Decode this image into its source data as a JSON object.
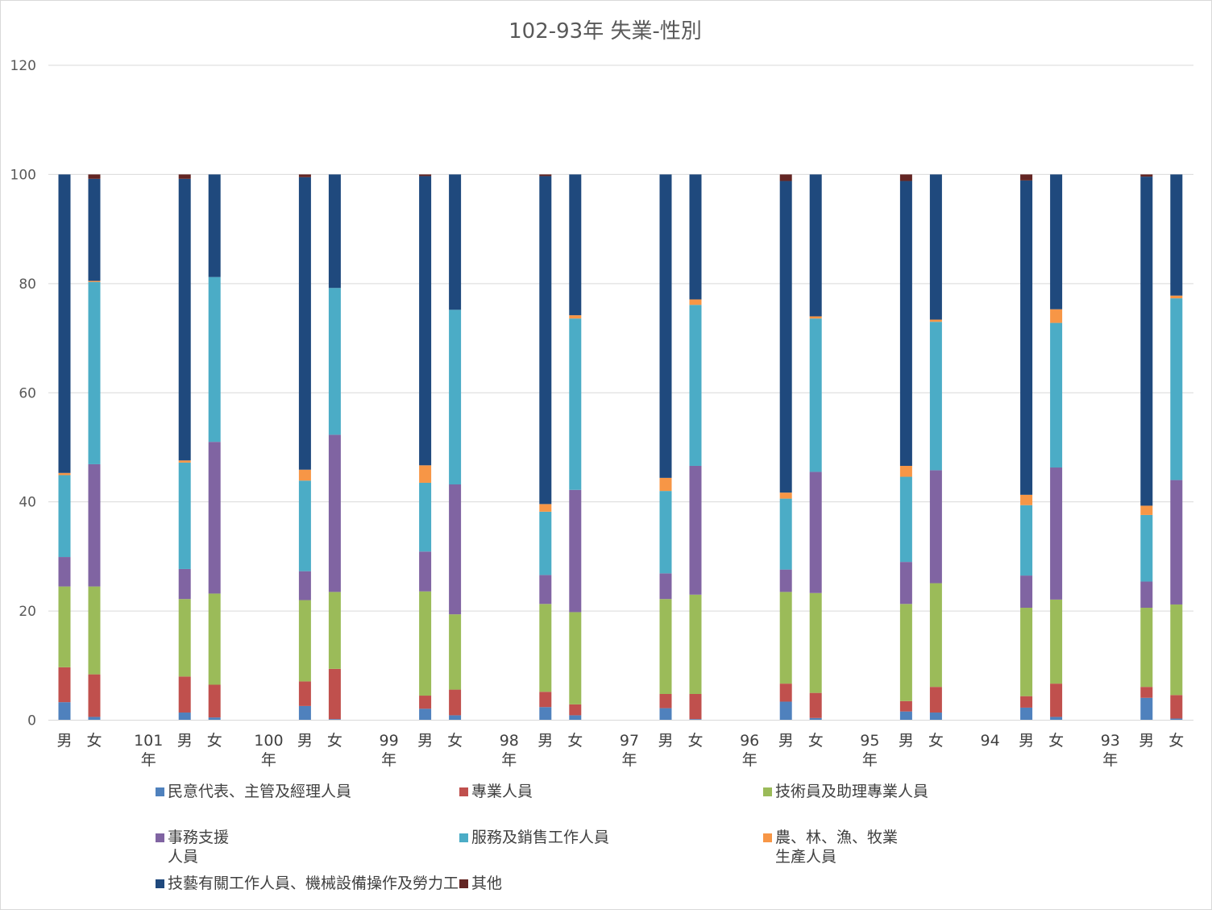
{
  "chart_data": {
    "type": "bar",
    "stacked": true,
    "title": "102-93年 失業-性別",
    "xlabel": "",
    "ylabel": "",
    "ylim": [
      0,
      120
    ],
    "yticks": [
      0,
      20,
      40,
      60,
      80,
      100,
      120
    ],
    "grid": true,
    "legend_position": "bottom",
    "groups": [
      "",
      "101\n年",
      "100\n年",
      "99\n年",
      "98\n年",
      "97\n年",
      "96\n年",
      "95\n年",
      "94",
      "93\n年"
    ],
    "categories": [
      "男",
      "女",
      "男",
      "女",
      "男",
      "女",
      "男",
      "女",
      "男",
      "女",
      "男",
      "女",
      "男",
      "女",
      "男",
      "女",
      "男",
      "女",
      "男",
      "女"
    ],
    "series": [
      {
        "name": "民意代表、主管及經理人員",
        "color": "#4f81bd",
        "values": [
          3.3,
          0.6,
          1.4,
          0.5,
          2.6,
          0.2,
          2.1,
          0.9,
          2.4,
          0.9,
          2.2,
          0.2,
          3.4,
          0.4,
          1.6,
          1.4,
          2.3,
          0.6,
          4.1,
          0.3
        ]
      },
      {
        "name": "專業人員",
        "color": "#c0504d",
        "values": [
          6.4,
          7.8,
          6.6,
          6.0,
          4.5,
          9.2,
          2.4,
          4.7,
          2.8,
          2.0,
          2.6,
          4.6,
          3.3,
          4.6,
          1.9,
          4.7,
          2.1,
          6.1,
          2.0,
          4.3
        ]
      },
      {
        "name": "技術員及助理專業人員",
        "color": "#9bbb59",
        "values": [
          14.8,
          16.1,
          14.2,
          16.7,
          14.9,
          14.1,
          19.1,
          13.8,
          16.1,
          16.9,
          17.4,
          18.2,
          16.8,
          18.3,
          17.8,
          19.0,
          16.2,
          15.4,
          14.5,
          16.6
        ]
      },
      {
        "name": "事務支援\n人員",
        "color": "#8064a2",
        "values": [
          5.4,
          22.4,
          5.5,
          27.8,
          5.3,
          28.8,
          7.3,
          23.8,
          5.3,
          22.4,
          4.7,
          23.6,
          4.1,
          22.2,
          7.7,
          20.7,
          5.9,
          24.2,
          4.8,
          22.8
        ]
      },
      {
        "name": "服務及銷售工作人員",
        "color": "#4bacc6",
        "values": [
          15.0,
          33.4,
          19.5,
          30.2,
          16.6,
          26.9,
          12.6,
          32.0,
          11.6,
          31.4,
          15.1,
          29.5,
          13.0,
          28.1,
          15.6,
          27.2,
          12.9,
          26.5,
          12.2,
          33.3
        ]
      },
      {
        "name": "農、林、漁、牧業\n生產人員",
        "color": "#f79646",
        "values": [
          0.4,
          0.2,
          0.4,
          0.0,
          2.0,
          0.0,
          3.2,
          0.0,
          1.4,
          0.6,
          2.4,
          1.0,
          1.1,
          0.4,
          2.0,
          0.4,
          1.9,
          2.5,
          1.7,
          0.5
        ]
      },
      {
        "name": "技藝有關工作人員、機械設備操作及勞力工",
        "color": "#1f497d",
        "values": [
          54.7,
          18.7,
          51.6,
          18.8,
          53.6,
          20.8,
          53.0,
          24.8,
          60.1,
          25.8,
          55.6,
          22.9,
          57.1,
          26.0,
          52.2,
          26.6,
          57.6,
          24.7,
          60.3,
          22.2
        ]
      },
      {
        "name": "其他",
        "color": "#632523",
        "values": [
          0.0,
          0.8,
          0.8,
          0.0,
          0.5,
          0.0,
          0.3,
          0.0,
          0.3,
          0.0,
          0.0,
          0.0,
          1.2,
          0.0,
          1.2,
          0.0,
          1.1,
          0.0,
          0.4,
          0.0
        ]
      }
    ]
  }
}
